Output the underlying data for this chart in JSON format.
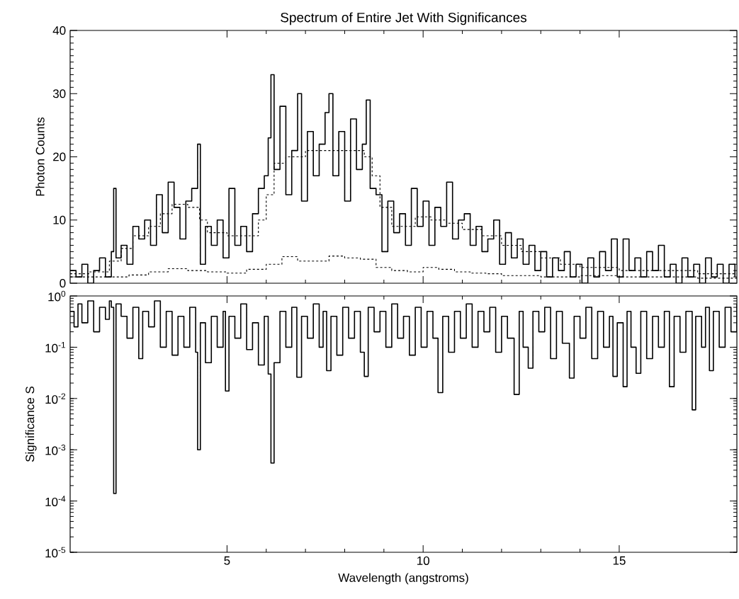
{
  "chart_data": [
    {
      "type": "step",
      "title": "Spectrum of Entire Jet With Significances",
      "ylabel": "Photon Counts",
      "xlim": [
        1,
        18
      ],
      "xticks": [
        5,
        10,
        15
      ],
      "ylim": [
        0,
        40
      ],
      "yticks": [
        0,
        10,
        20,
        30,
        40
      ],
      "tick_labels": "y",
      "series": [
        {
          "color": "#000000",
          "line_style": "solid",
          "x": [
            1.0,
            1.15,
            1.3,
            1.45,
            1.6,
            1.75,
            1.9,
            2.05,
            2.11,
            2.17,
            2.3,
            2.45,
            2.6,
            2.75,
            2.9,
            3.05,
            3.2,
            3.35,
            3.5,
            3.65,
            3.8,
            3.95,
            4.1,
            4.25,
            4.32,
            4.45,
            4.6,
            4.75,
            4.9,
            5.05,
            5.2,
            5.35,
            5.5,
            5.65,
            5.8,
            5.95,
            6.05,
            6.12,
            6.2,
            6.35,
            6.5,
            6.65,
            6.8,
            6.9,
            7.05,
            7.2,
            7.35,
            7.5,
            7.6,
            7.7,
            7.85,
            8.0,
            8.15,
            8.3,
            8.45,
            8.55,
            8.65,
            8.8,
            8.95,
            9.1,
            9.25,
            9.4,
            9.55,
            9.7,
            9.85,
            10.0,
            10.15,
            10.3,
            10.45,
            10.6,
            10.75,
            10.9,
            11.05,
            11.2,
            11.35,
            11.5,
            11.65,
            11.8,
            11.95,
            12.1,
            12.25,
            12.4,
            12.55,
            12.7,
            12.85,
            13.0,
            13.15,
            13.3,
            13.45,
            13.6,
            13.75,
            13.9,
            14.05,
            14.2,
            14.35,
            14.5,
            14.65,
            14.8,
            14.95,
            15.1,
            15.25,
            15.4,
            15.55,
            15.7,
            15.85,
            16.0,
            16.15,
            16.3,
            16.45,
            16.6,
            16.75,
            16.9,
            17.05,
            17.2,
            17.35,
            17.5,
            17.65,
            17.8,
            17.95
          ],
          "values": [
            2,
            1,
            3,
            0,
            2,
            4,
            1,
            5,
            15,
            4,
            6,
            3,
            9,
            7,
            10,
            6,
            14,
            8,
            16,
            12,
            7,
            13,
            15,
            22,
            3,
            9,
            6,
            10,
            4,
            15,
            6,
            9,
            5,
            11,
            15,
            17,
            23,
            33,
            18,
            28,
            14,
            21,
            30,
            13,
            24,
            17,
            22,
            27,
            30,
            17,
            24,
            13,
            26,
            18,
            22,
            29,
            15,
            14,
            5,
            13,
            8,
            11,
            6,
            15,
            9,
            13,
            6,
            12,
            9,
            16,
            7,
            10,
            11,
            6,
            9,
            5,
            7,
            10,
            3,
            8,
            4,
            7,
            3,
            6,
            2,
            5,
            1,
            4,
            2,
            5,
            1,
            3,
            0,
            4,
            1,
            5,
            2,
            7,
            1,
            7,
            2,
            4,
            1,
            5,
            2,
            6,
            1,
            3,
            0,
            4,
            1,
            3,
            0,
            4,
            1,
            3,
            0,
            3,
            1
          ]
        },
        {
          "color": "#000000",
          "line_style": "dashed",
          "x": [
            1.0,
            1.5,
            2.0,
            2.3,
            2.6,
            3.0,
            3.3,
            3.6,
            4.0,
            4.3,
            4.5,
            5.0,
            5.5,
            5.8,
            6.0,
            6.2,
            6.5,
            7.0,
            7.5,
            8.0,
            8.5,
            8.7,
            8.9,
            9.2,
            9.5,
            9.8,
            10.2,
            10.6,
            11.0,
            11.5,
            12.0,
            12.5,
            13.0,
            13.5,
            14.0,
            15.0,
            16.0,
            17.0,
            18.0
          ],
          "values": [
            1.5,
            1.8,
            3.5,
            5.5,
            7.5,
            9,
            11,
            12.5,
            12,
            10,
            8,
            7.5,
            7.5,
            10,
            14,
            19,
            20,
            21,
            21,
            21,
            20,
            17,
            12,
            9,
            9,
            10.5,
            10,
            9.5,
            8.5,
            7.5,
            6,
            5,
            4,
            3,
            2.5,
            2,
            2,
            1.5,
            1.5
          ]
        },
        {
          "color": "#000000",
          "line_style": "dashed",
          "x": [
            1.0,
            2.0,
            2.5,
            3.0,
            3.5,
            4.0,
            4.5,
            5.0,
            5.5,
            6.0,
            6.4,
            6.8,
            7.2,
            7.6,
            8.0,
            8.4,
            8.8,
            9.2,
            9.6,
            10.0,
            10.4,
            10.8,
            11.2,
            11.6,
            12.0,
            13.0,
            14.0,
            15.0,
            16.0,
            17.0,
            18.0
          ],
          "values": [
            1,
            1,
            1.3,
            1.8,
            2.3,
            2,
            1.8,
            1.6,
            2.2,
            3,
            4.2,
            3.5,
            3.5,
            4.3,
            4,
            3.8,
            2.5,
            2,
            1.8,
            2.5,
            2.2,
            1.8,
            1.6,
            1.5,
            1.2,
            1,
            1.2,
            1,
            1,
            0.8,
            0.8
          ]
        }
      ]
    },
    {
      "type": "step",
      "xlabel": "Wavelength (angstroms)",
      "ylabel": "Significance S",
      "log": "y",
      "xlim": [
        1,
        18
      ],
      "xticks": [
        5,
        10,
        15
      ],
      "ylim": [
        1e-05,
        1
      ],
      "yticks": [
        {
          "value": 1e-05,
          "label": "10$^{-5}$"
        },
        {
          "value": 0.0001,
          "label": "10$^{-4}$"
        },
        {
          "value": 0.001,
          "label": "10$^{-3}$"
        },
        {
          "value": 0.01,
          "label": "10$^{-2}$"
        },
        {
          "value": 0.1,
          "label": "10$^{-1}$"
        },
        {
          "value": 1,
          "label": "10$^{0}$"
        }
      ],
      "series": [
        {
          "color": "#000000",
          "line_style": "solid",
          "x": [
            1.0,
            1.1,
            1.2,
            1.3,
            1.45,
            1.6,
            1.75,
            1.9,
            2.0,
            2.05,
            2.11,
            2.17,
            2.3,
            2.45,
            2.6,
            2.75,
            2.85,
            3.0,
            3.15,
            3.3,
            3.45,
            3.6,
            3.75,
            3.9,
            4.05,
            4.2,
            4.25,
            4.32,
            4.45,
            4.6,
            4.75,
            4.9,
            4.96,
            5.05,
            5.2,
            5.35,
            5.5,
            5.65,
            5.8,
            5.95,
            6.05,
            6.12,
            6.2,
            6.35,
            6.5,
            6.65,
            6.78,
            6.9,
            7.05,
            7.2,
            7.35,
            7.45,
            7.54,
            7.65,
            7.8,
            7.95,
            8.1,
            8.25,
            8.4,
            8.5,
            8.6,
            8.75,
            8.9,
            9.05,
            9.2,
            9.35,
            9.5,
            9.65,
            9.8,
            9.95,
            10.1,
            10.25,
            10.38,
            10.5,
            10.65,
            10.8,
            10.95,
            11.1,
            11.25,
            11.4,
            11.55,
            11.7,
            11.85,
            12.0,
            12.15,
            12.32,
            12.45,
            12.55,
            12.68,
            12.8,
            12.95,
            13.1,
            13.25,
            13.4,
            13.55,
            13.73,
            13.85,
            14.0,
            14.15,
            14.3,
            14.45,
            14.6,
            14.75,
            14.84,
            14.95,
            15.1,
            15.2,
            15.3,
            15.43,
            15.55,
            15.7,
            15.85,
            16.0,
            16.15,
            16.28,
            16.4,
            16.55,
            16.7,
            16.86,
            16.95,
            17.1,
            17.2,
            17.3,
            17.4,
            17.55,
            17.7,
            17.85,
            18.0
          ],
          "values": [
            0.5,
            0.25,
            0.7,
            0.3,
            0.8,
            0.2,
            0.6,
            0.35,
            0.8,
            0.6,
            0.00014,
            0.7,
            0.4,
            0.15,
            0.6,
            0.06,
            0.5,
            0.25,
            0.8,
            0.1,
            0.5,
            0.07,
            0.4,
            0.1,
            0.6,
            0.08,
            0.001,
            0.3,
            0.05,
            0.4,
            0.1,
            0.5,
            0.014,
            0.4,
            0.15,
            0.7,
            0.09,
            0.3,
            0.045,
            0.4,
            0.03,
            0.00055,
            0.05,
            0.5,
            0.1,
            0.6,
            0.026,
            0.4,
            0.15,
            0.7,
            0.1,
            0.5,
            0.035,
            0.4,
            0.07,
            0.6,
            0.15,
            0.5,
            0.08,
            0.027,
            0.6,
            0.2,
            0.5,
            0.1,
            0.7,
            0.15,
            0.4,
            0.07,
            0.6,
            0.1,
            0.5,
            0.15,
            0.013,
            0.4,
            0.08,
            0.5,
            0.15,
            0.7,
            0.1,
            0.5,
            0.2,
            0.6,
            0.08,
            0.4,
            0.15,
            0.012,
            0.5,
            0.1,
            0.039,
            0.5,
            0.2,
            0.6,
            0.06,
            0.5,
            0.12,
            0.025,
            0.4,
            0.15,
            0.6,
            0.06,
            0.5,
            0.1,
            0.4,
            0.027,
            0.3,
            0.017,
            0.5,
            0.1,
            0.031,
            0.5,
            0.06,
            0.4,
            0.1,
            0.5,
            0.017,
            0.4,
            0.08,
            0.5,
            0.006,
            0.4,
            0.1,
            0.6,
            0.035,
            0.5,
            0.1,
            0.6,
            0.2,
            0.7
          ]
        }
      ]
    }
  ]
}
